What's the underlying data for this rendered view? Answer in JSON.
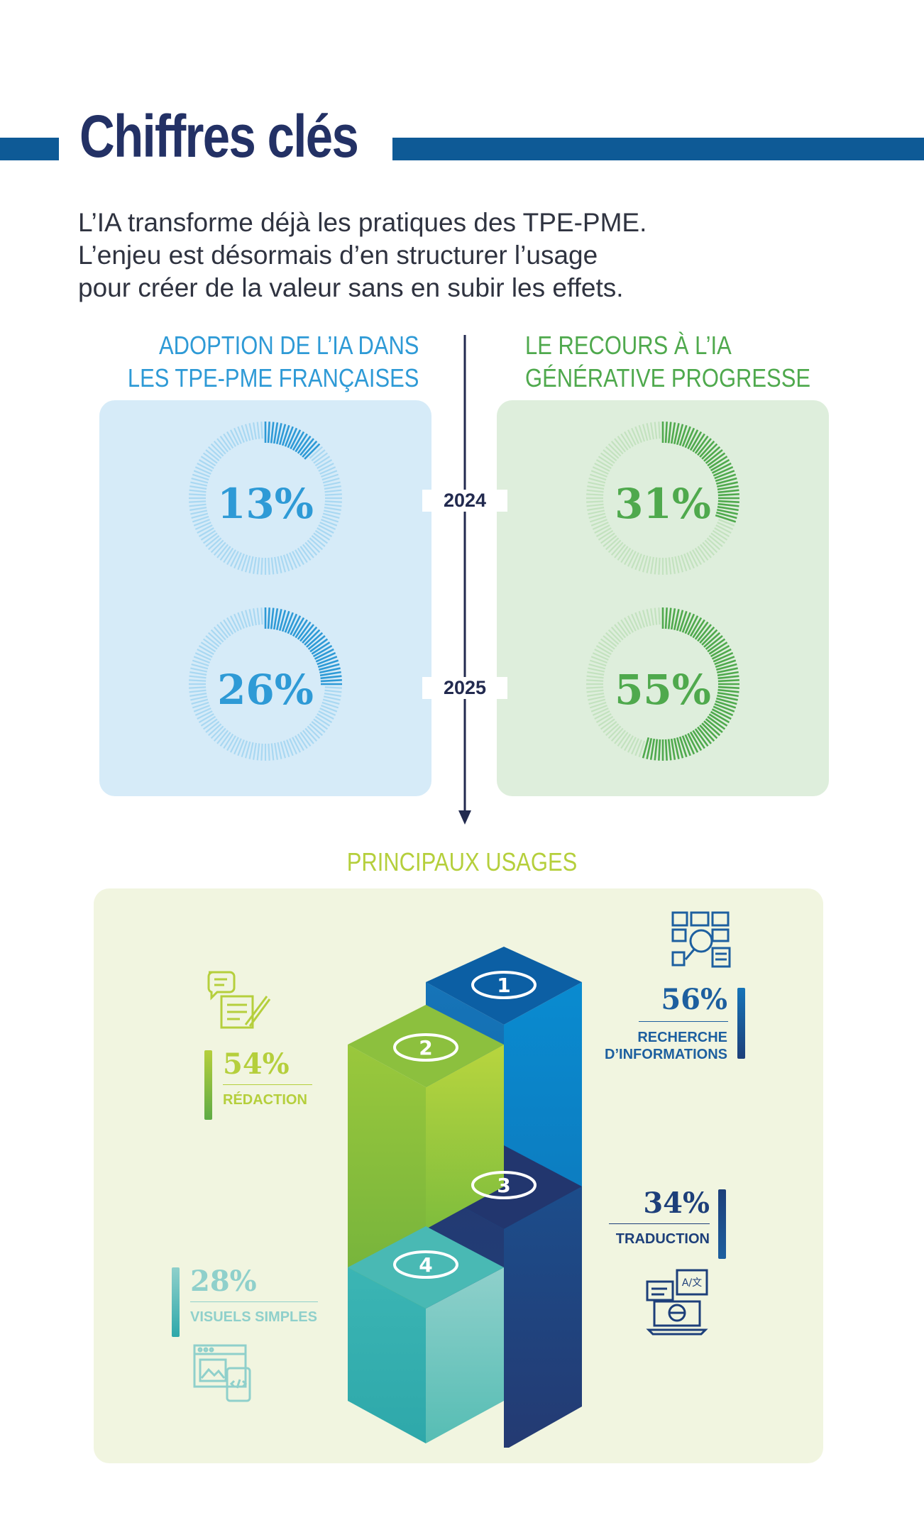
{
  "title": "Chiffres clés",
  "intro": [
    "L’IA transforme déjà les pratiques des TPE-PME.",
    "L’enjeu est désormais d’en structurer l’usage",
    "pour créer de la valeur sans en subir les effets."
  ],
  "colors": {
    "navy": "#233165",
    "brand_blue": "#0e5a96",
    "blue": "#2e9ad6",
    "green": "#4fa94d",
    "lime": "#b5cf3c",
    "teal": "#3cbdb9",
    "dark_blue": "#1d3f7a"
  },
  "timeline": {
    "years": [
      "2024",
      "2025"
    ]
  },
  "usages_title": "PRINCIPAUX USAGES",
  "chart_data": [
    {
      "type": "donut",
      "title": "ADOPTION DE L’IA DANS LES TPE-PME FRANÇAISES",
      "title_lines": [
        "ADOPTION DE L’IA DANS",
        "LES TPE-PME FRANÇAISES"
      ],
      "categories": [
        "2024",
        "2025"
      ],
      "values": [
        13,
        26
      ],
      "labels": [
        "13%",
        "26%"
      ],
      "unit": "%",
      "color": "#2e9ad6"
    },
    {
      "type": "donut",
      "title": "LE RECOURS À L’IA GÉNÉRATIVE PROGRESSE",
      "title_lines": [
        "LE RECOURS À L’IA",
        "GÉNÉRATIVE PROGRESSE"
      ],
      "categories": [
        "2024",
        "2025"
      ],
      "values": [
        31,
        55
      ],
      "labels": [
        "31%",
        "55%"
      ],
      "unit": "%",
      "color": "#4fa94d"
    },
    {
      "type": "bar",
      "title": "PRINCIPAUX USAGES",
      "ranks": [
        "1",
        "2",
        "3",
        "4"
      ],
      "categories": [
        "RECHERCHE D’INFORMATIONS",
        "RÉDACTION",
        "TRADUCTION",
        "VISUELS SIMPLES"
      ],
      "category_lines": [
        [
          "RECHERCHE",
          "D’INFORMATIONS"
        ],
        [
          "RÉDACTION"
        ],
        [
          "TRADUCTION"
        ],
        [
          "VISUELS SIMPLES"
        ]
      ],
      "values": [
        56,
        54,
        34,
        28
      ],
      "labels": [
        "56%",
        "54%",
        "34%",
        "28%"
      ],
      "icons": [
        "research-icon",
        "writing-icon",
        "translation-icon",
        "visuals-icon"
      ],
      "unit": "%"
    }
  ]
}
